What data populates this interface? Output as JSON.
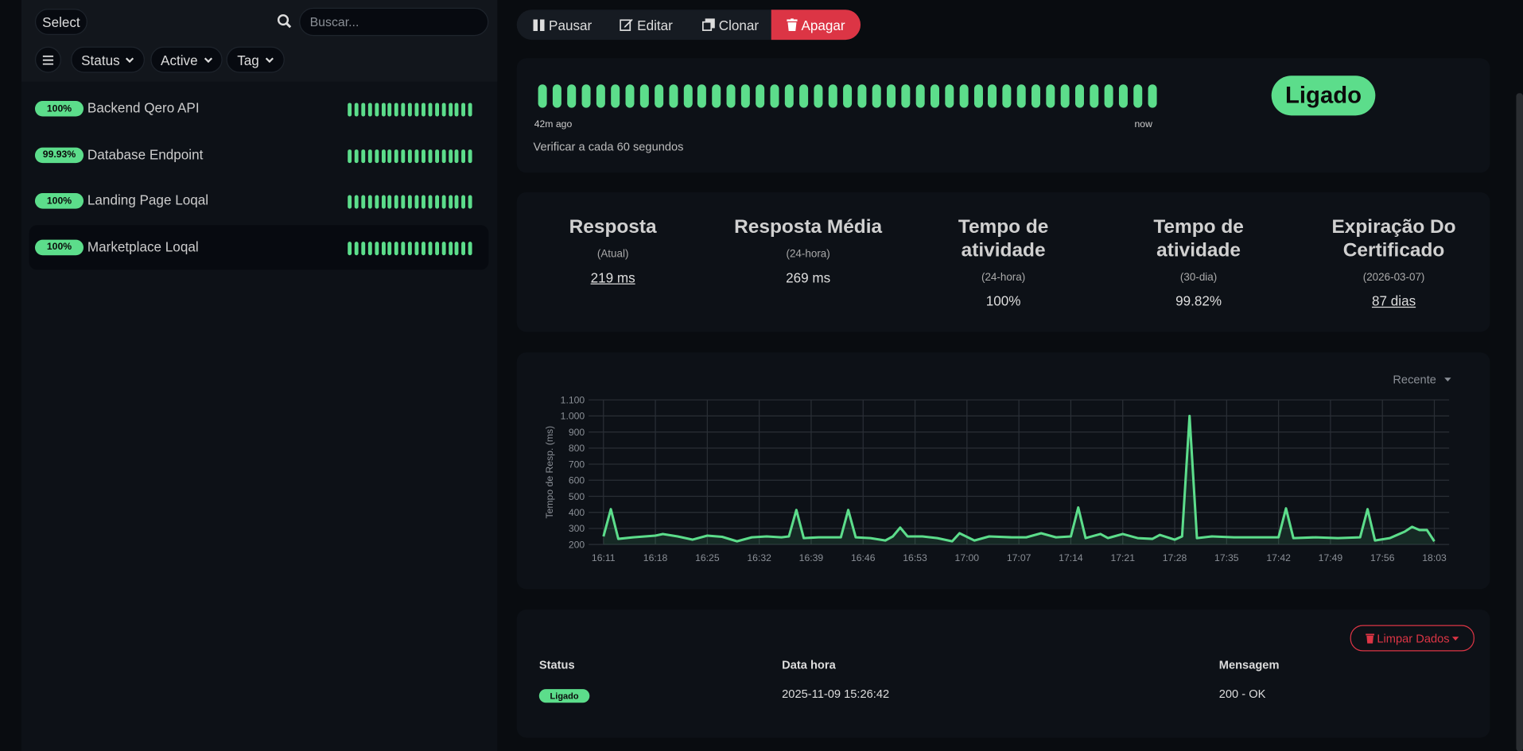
{
  "sidebar": {
    "select": "Select",
    "search_placeholder": "Buscar...",
    "filters": [
      "Status",
      "Active",
      "Tag"
    ],
    "monitors": [
      {
        "uptime": "100%",
        "name": "Backend Qero API"
      },
      {
        "uptime": "99.93%",
        "name": "Database Endpoint"
      },
      {
        "uptime": "100%",
        "name": "Landing Page Loqal"
      },
      {
        "uptime": "100%",
        "name": "Marketplace Loqal"
      }
    ]
  },
  "toolbar": {
    "buttons": [
      "Pausar",
      "Editar",
      "Clonar",
      "Apagar"
    ]
  },
  "heartbeat": {
    "start": "42m ago",
    "end": "now",
    "interval": "Verificar a cada 60 segundos",
    "status": "Ligado"
  },
  "stats": [
    {
      "title": "Resposta",
      "sub": "(Atual)",
      "value": "219 ms"
    },
    {
      "title": "Resposta Média",
      "sub": "(24-hora)",
      "value": "269 ms"
    },
    {
      "title": "Tempo de atividade",
      "sub": "(24-hora)",
      "value": "100%"
    },
    {
      "title": "Tempo de atividade",
      "sub": "(30-dia)",
      "value": "99.82%"
    },
    {
      "title": "Expiração Do Certificado",
      "sub": "(2026-03-07)",
      "value": "87 dias"
    }
  ],
  "chart_controls": {
    "period": "Recente"
  },
  "chart_data": {
    "type": "line",
    "y_label": "Tempo de Resp. (ms)",
    "color": "#5cdd8b",
    "fill_area": true,
    "grid": true,
    "x": [
      "16:11",
      "16:12",
      "16:13",
      "16:15",
      "16:18",
      "16:19",
      "16:21",
      "16:23",
      "16:25",
      "16:27",
      "16:29",
      "16:31",
      "16:33",
      "16:35",
      "16:36",
      "16:37",
      "16:38",
      "16:40",
      "16:43",
      "16:44",
      "16:45",
      "16:47",
      "16:49",
      "16:50",
      "16:51",
      "16:52",
      "16:54",
      "16:56",
      "16:58",
      "16:59",
      "17:01",
      "17:03",
      "17:06",
      "17:08",
      "17:10",
      "17:12",
      "17:14",
      "17:15",
      "17:16",
      "17:18",
      "17:19",
      "17:21",
      "17:23",
      "17:25",
      "17:26",
      "17:28",
      "17:29",
      "17:30",
      "17:31",
      "17:33",
      "17:36",
      "17:40",
      "17:42",
      "17:43",
      "17:44",
      "17:47",
      "17:50",
      "17:53",
      "17:54",
      "17:55",
      "17:57",
      "17:58",
      "17:59",
      "18:00",
      "18:01",
      "18:02",
      "18:03"
    ],
    "values": [
      250,
      420,
      235,
      245,
      255,
      265,
      250,
      230,
      255,
      248,
      220,
      245,
      250,
      245,
      250,
      415,
      240,
      245,
      245,
      415,
      245,
      240,
      225,
      250,
      305,
      250,
      250,
      240,
      220,
      270,
      225,
      250,
      245,
      245,
      270,
      245,
      250,
      430,
      240,
      265,
      240,
      265,
      240,
      235,
      260,
      230,
      250,
      1000,
      240,
      250,
      245,
      245,
      245,
      425,
      240,
      245,
      240,
      245,
      420,
      225,
      240,
      260,
      280,
      310,
      290,
      290,
      220
    ],
    "xlim": [
      "16:09",
      "18:05"
    ],
    "xticks": [
      "16:11",
      "16:18",
      "16:25",
      "16:32",
      "16:39",
      "16:46",
      "16:53",
      "17:00",
      "17:07",
      "17:14",
      "17:21",
      "17:28",
      "17:35",
      "17:42",
      "17:49",
      "17:56",
      "18:03"
    ],
    "ylim": [
      200,
      1100
    ],
    "yticks": [
      200,
      300,
      400,
      500,
      600,
      700,
      800,
      900,
      {
        "value": 1000,
        "label": "1.000"
      },
      {
        "value": 1100,
        "label": "1.100"
      }
    ]
  },
  "events": {
    "clear_button": "Limpar Dados",
    "columns": [
      "Status",
      "Data hora",
      "Mensagem"
    ],
    "rows": [
      [
        "Ligado",
        "2025-11-09 15:26:42",
        "200 - OK"
      ]
    ]
  }
}
